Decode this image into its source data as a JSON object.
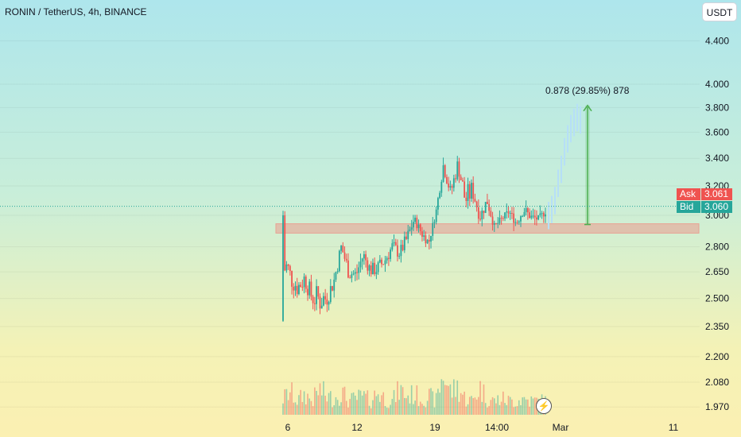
{
  "header": {
    "symbol": "RONIN / TetherUS",
    "interval": "4h",
    "exchange": "BINANCE",
    "currency_button": "USDT"
  },
  "quote": {
    "ask_label": "Ask",
    "ask_value": "3.061",
    "bid_label": "Bid",
    "bid_value": "3.060"
  },
  "measure_label": "0.878 (29.85%) 878",
  "icons": {
    "replay": "lightning-icon"
  },
  "colors": {
    "up": "#26a69a",
    "down": "#ef5350",
    "zone": "#e8a294",
    "projection": "#b6dff7",
    "measure": "#4caf50"
  },
  "chart_data": {
    "type": "candlestick",
    "scale": "log",
    "ylim": [
      1.9,
      4.7
    ],
    "y_ticks": [
      "4.400",
      "4.000",
      "3.800",
      "3.600",
      "3.400",
      "3.200",
      "3.000",
      "2.800",
      "2.650",
      "2.500",
      "2.350",
      "2.200",
      "2.080",
      "1.970"
    ],
    "x_ticks": [
      "6",
      "12",
      "19",
      "14:00",
      "Mar",
      "11"
    ],
    "current_price_line": 3.06,
    "support_zone": [
      2.885,
      2.945
    ],
    "measure": {
      "from": 2.94,
      "to": 3.818,
      "change": 0.878,
      "percent": 29.85
    },
    "projection_path": [
      3.0,
      3.04,
      3.1,
      3.22,
      3.32,
      3.45,
      3.55,
      3.63,
      3.68,
      3.72,
      3.7
    ],
    "candle_anchors": [
      [
        2.95,
        2.45
      ],
      [
        2.7,
        2.55
      ],
      [
        2.62,
        2.5
      ],
      [
        2.68,
        2.55
      ],
      [
        2.55,
        2.45
      ],
      [
        2.6,
        2.4
      ],
      [
        2.55,
        2.45
      ],
      [
        2.65,
        2.55
      ],
      [
        2.85,
        2.75
      ],
      [
        2.7,
        2.6
      ],
      [
        2.68,
        2.58
      ],
      [
        2.8,
        2.7
      ],
      [
        2.7,
        2.62
      ],
      [
        2.72,
        2.62
      ],
      [
        2.76,
        2.68
      ],
      [
        2.85,
        2.75
      ],
      [
        2.8,
        2.72
      ],
      [
        2.9,
        2.8
      ],
      [
        3.0,
        2.95
      ],
      [
        2.92,
        2.85
      ],
      [
        2.85,
        2.8
      ],
      [
        3.05,
        3.0
      ],
      [
        3.4,
        3.3
      ],
      [
        3.2,
        3.1
      ],
      [
        3.42,
        3.3
      ],
      [
        3.2,
        3.0
      ],
      [
        3.25,
        3.1
      ],
      [
        3.02,
        2.95
      ],
      [
        3.15,
        3.05
      ],
      [
        2.95,
        2.9
      ],
      [
        3.0,
        2.95
      ],
      [
        3.05,
        3.0
      ],
      [
        2.98,
        2.92
      ],
      [
        3.08,
        3.0
      ],
      [
        3.02,
        2.96
      ],
      [
        3.0,
        2.95
      ],
      [
        3.05,
        3.0
      ]
    ],
    "volume_anchors": [
      0.35,
      0.5,
      0.3,
      0.45,
      0.3,
      0.55,
      0.4,
      0.35,
      0.5,
      0.3,
      0.35,
      0.4,
      0.3,
      0.5,
      0.35,
      0.3,
      0.55,
      0.4,
      0.45,
      0.35,
      0.4,
      0.3,
      0.9,
      0.5,
      0.6,
      0.35,
      0.3,
      0.6,
      0.35,
      0.3,
      0.35,
      0.3,
      0.3,
      0.35,
      0.3,
      0.3,
      0.3
    ]
  }
}
